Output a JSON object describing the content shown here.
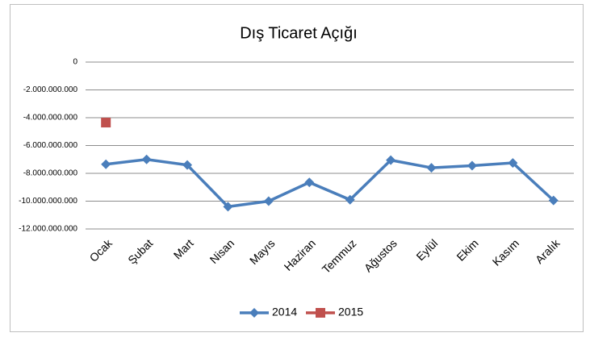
{
  "chart_data": {
    "type": "line",
    "title": "Dış Ticaret Açığı",
    "categories": [
      "Ocak",
      "Şubat",
      "Mart",
      "Nisan",
      "Mayıs",
      "Haziran",
      "Temmuz",
      "Ağustos",
      "Eylül",
      "Ekim",
      "Kasım",
      "Aralık"
    ],
    "series": [
      {
        "name": "2014",
        "color": "#4a7ebb",
        "marker": "diamond",
        "values": [
          -7350000000,
          -7000000000,
          -7400000000,
          -10400000000,
          -10000000000,
          -8650000000,
          -9900000000,
          -7050000000,
          -7600000000,
          -7450000000,
          -7250000000,
          -9950000000
        ]
      },
      {
        "name": "2015",
        "color": "#c0504d",
        "marker": "square",
        "values": [
          -4350000000,
          null,
          null,
          null,
          null,
          null,
          null,
          null,
          null,
          null,
          null,
          null
        ]
      }
    ],
    "ylim": [
      -12000000000,
      0
    ],
    "yticks": [
      0,
      {
        "value": -2000000000,
        "label": "-2.000.000.000"
      },
      {
        "value": -4000000000,
        "label": "-4.000.000.000"
      },
      {
        "value": -6000000000,
        "label": "-6.000.000.000"
      },
      {
        "value": -8000000000,
        "label": "-8.000.000.000"
      },
      {
        "value": -10000000000,
        "label": "-10.000.000.000"
      },
      {
        "value": -12000000000,
        "label": "-12.000.000.000"
      }
    ],
    "grid": true,
    "legend": "bottom"
  }
}
